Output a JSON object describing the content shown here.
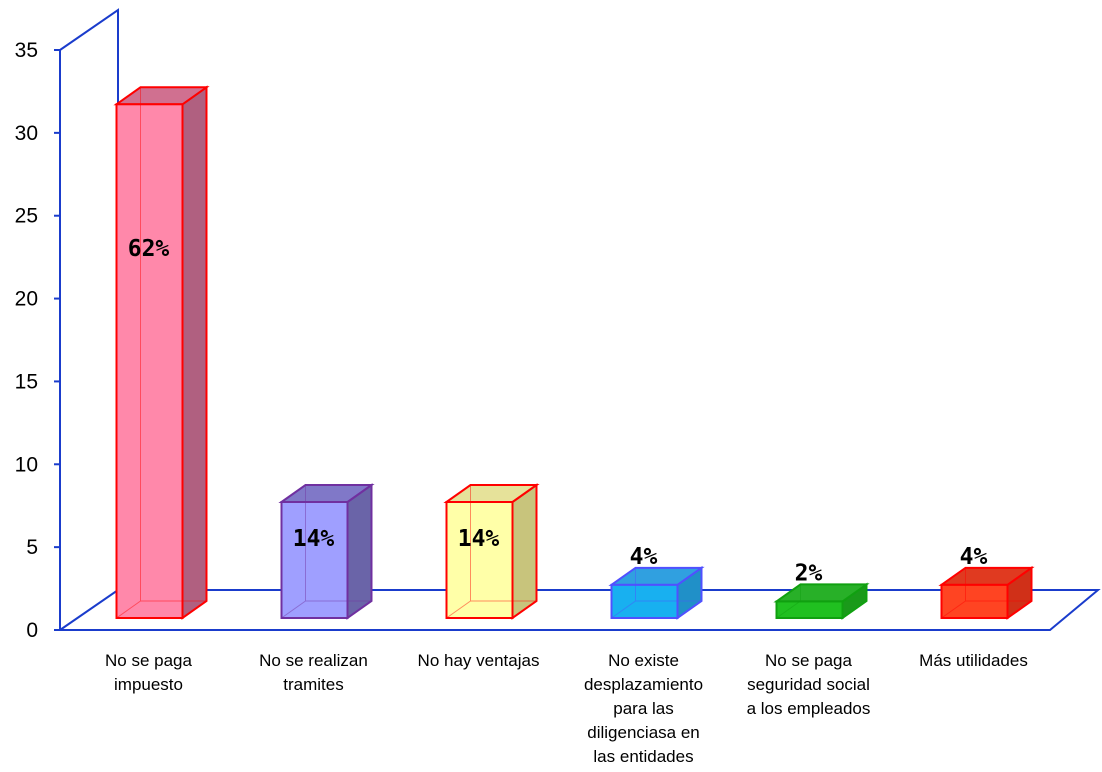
{
  "chart_data": {
    "type": "bar",
    "categories": [
      [
        "No se paga",
        "impuesto"
      ],
      [
        "No se realizan",
        "tramites"
      ],
      [
        "No hay ventajas"
      ],
      [
        "No existe",
        "desplazamiento",
        "para las",
        "diligenciasa en",
        "las entidades"
      ],
      [
        "No se paga",
        "seguridad social",
        "a los empleados"
      ],
      [
        "Más utilidades"
      ]
    ],
    "values": [
      31,
      7,
      7,
      2,
      1,
      2
    ],
    "data_labels": [
      "62%",
      "14%",
      "14%",
      "4%",
      "2%",
      "4%"
    ],
    "bar_colors": [
      {
        "fill": "#ff88aa",
        "side": "#b06080",
        "top": "#d07090",
        "stroke": "#ff0000"
      },
      {
        "fill": "#9f9fff",
        "side": "#6a64a8",
        "top": "#8078c8",
        "stroke": "#7030a0"
      },
      {
        "fill": "#ffffa8",
        "side": "#c8c47c",
        "top": "#e6e29a",
        "stroke": "#ff0000"
      },
      {
        "fill": "#18b0f0",
        "side": "#2090c8",
        "top": "#30a0e0",
        "stroke": "#5050ff"
      },
      {
        "fill": "#20c020",
        "side": "#1a9a1a",
        "top": "#28b028",
        "stroke": "#10a010"
      },
      {
        "fill": "#ff4422",
        "side": "#d03018",
        "top": "#e03a20",
        "stroke": "#ff0000"
      }
    ],
    "yticks": [
      0,
      5,
      10,
      15,
      20,
      25,
      30,
      35
    ],
    "ylim": [
      0,
      35
    ],
    "axis_color": "#1a3ccc",
    "title": "",
    "xlabel": "",
    "ylabel": ""
  }
}
